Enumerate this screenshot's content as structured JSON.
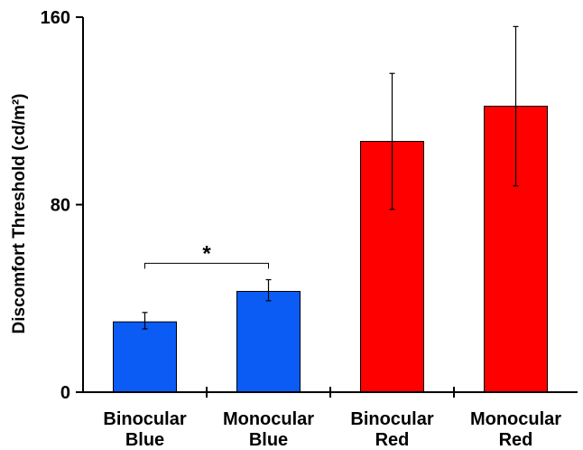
{
  "chart_data": {
    "type": "bar",
    "categories": [
      [
        "Binocular",
        "Blue"
      ],
      [
        "Monocular",
        "Blue"
      ],
      [
        "Binocular",
        "Red"
      ],
      [
        "Monocular",
        "Red"
      ]
    ],
    "values": [
      30,
      43,
      107,
      122
    ],
    "error_low": [
      27,
      39,
      78,
      88
    ],
    "error_high": [
      34,
      48,
      136,
      156
    ],
    "bar_colors": [
      "#0a5cf5",
      "#0a5cf5",
      "#ff0000",
      "#ff0000"
    ],
    "ylabel": "Discomfort Threshold (cd/m²)",
    "ylim": [
      0,
      160
    ],
    "yticks": [
      0,
      80,
      160
    ],
    "grid": false,
    "annotations": [
      {
        "type": "significance-bracket",
        "from": 0,
        "to": 1,
        "label": "*",
        "y": 55
      }
    ]
  },
  "colors": {
    "blue": "#0a5cf5",
    "red": "#ff0000",
    "axis": "#000000"
  }
}
